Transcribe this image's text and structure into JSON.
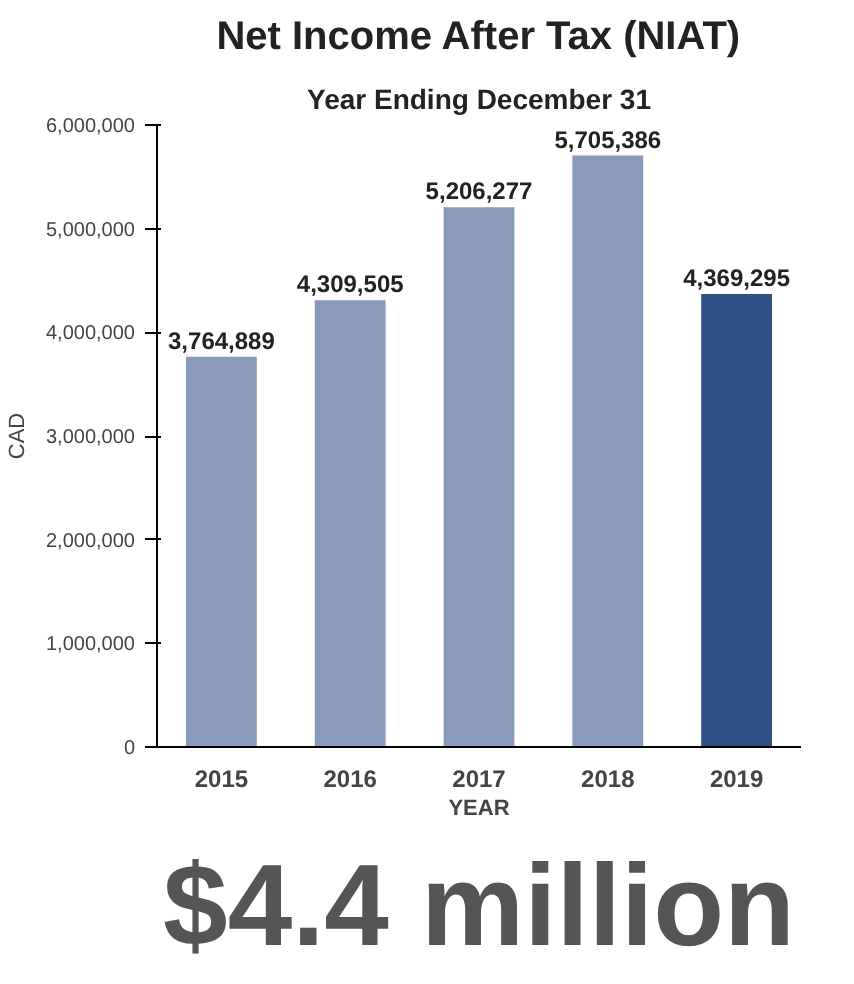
{
  "chart_data": {
    "type": "bar",
    "title": "Net Income After Tax (NIAT)",
    "subtitle": "Year Ending December 31",
    "xlabel": "YEAR",
    "ylabel": "CAD",
    "categories": [
      "2015",
      "2016",
      "2017",
      "2018",
      "2019"
    ],
    "values": [
      3764889,
      4309505,
      5206277,
      5705386,
      4369295
    ],
    "colors": [
      "#8a9aba",
      "#8a9aba",
      "#8a9aba",
      "#8a9aba",
      "#2f4f85"
    ],
    "value_labels": [
      "3,764,889",
      "4,309,505",
      "5,206,277",
      "5,705,386",
      "4,369,295"
    ],
    "ylim": [
      0,
      6000000
    ],
    "yticks": [
      0,
      {
        "value": 1000000,
        "label": "1,000,000"
      },
      {
        "value": 2000000,
        "label": "2,000,000"
      },
      {
        "value": 3000000,
        "label": "3,000,000"
      },
      {
        "value": 4000000,
        "label": "4,000,000"
      },
      {
        "value": 5000000,
        "label": "5,000,000"
      },
      {
        "value": 6000000,
        "label": "6,000,000"
      }
    ],
    "grid": false,
    "annotations": [
      "$4.4 million"
    ]
  }
}
